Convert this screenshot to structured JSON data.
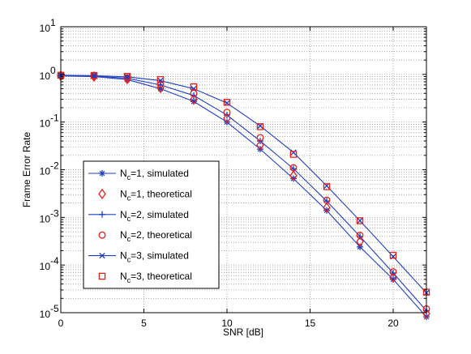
{
  "chart_data": {
    "type": "line",
    "xlabel": "SNR [dB]",
    "ylabel": "Frame Error Rate",
    "xlim": [
      0,
      22
    ],
    "ylim": [
      1e-05,
      10
    ],
    "yscale": "log",
    "grid": true,
    "legend_position": "lower-left",
    "x_ticks": [
      "0",
      "5",
      "10",
      "15",
      "20"
    ],
    "y_ticks": [
      {
        "base": "10",
        "exp": "1"
      },
      {
        "base": "10",
        "exp": "0"
      },
      {
        "base": "10",
        "exp": "-1"
      },
      {
        "base": "10",
        "exp": "-2"
      },
      {
        "base": "10",
        "exp": "-3"
      },
      {
        "base": "10",
        "exp": "-4"
      },
      {
        "base": "10",
        "exp": "-5"
      }
    ],
    "x": [
      0,
      2,
      4,
      6,
      8,
      10,
      12,
      14,
      16,
      18,
      20,
      22
    ],
    "series": [
      {
        "N": "1",
        "suffix": ", simulated",
        "marker": "asterisk",
        "line": true,
        "color": "#1f3fbf",
        "values": [
          0.93,
          0.9,
          0.78,
          0.5,
          0.27,
          0.1,
          0.027,
          0.0065,
          0.0014,
          0.00024,
          5e-05,
          8.2e-06
        ]
      },
      {
        "N": "1",
        "suffix": ", theoretical",
        "marker": "diamond",
        "line": false,
        "color": "#e8201c",
        "values": [
          0.93,
          0.9,
          0.8,
          0.52,
          0.3,
          0.12,
          0.033,
          0.0075,
          0.0016,
          0.00031,
          5.5e-05,
          9.5e-06
        ]
      },
      {
        "N": "2",
        "suffix": ", simulated",
        "marker": "plus",
        "line": true,
        "color": "#1f3fbf",
        "values": [
          0.95,
          0.92,
          0.83,
          0.6,
          0.36,
          0.14,
          0.04,
          0.0105,
          0.0022,
          0.0004,
          6.8e-05,
          1.1e-05
        ]
      },
      {
        "N": "2",
        "suffix": ", theoretical",
        "marker": "circle",
        "line": false,
        "color": "#e8201c",
        "values": [
          0.95,
          0.92,
          0.84,
          0.62,
          0.4,
          0.16,
          0.047,
          0.011,
          0.0023,
          0.00042,
          7.2e-05,
          1.2e-05
        ]
      },
      {
        "N": "3",
        "suffix": ", simulated",
        "marker": "x",
        "line": true,
        "color": "#1f3fbf",
        "values": [
          0.96,
          0.94,
          0.89,
          0.74,
          0.5,
          0.25,
          0.083,
          0.023,
          0.0046,
          0.00085,
          0.00015,
          2.6e-05
        ]
      },
      {
        "N": "3",
        "suffix": ", theoretical",
        "marker": "square",
        "line": false,
        "color": "#e8201c",
        "values": [
          0.96,
          0.95,
          0.91,
          0.78,
          0.55,
          0.26,
          0.08,
          0.021,
          0.0044,
          0.00085,
          0.00016,
          2.7e-05
        ]
      }
    ],
    "legend_entries": [
      {
        "main": "N",
        "sub": "c",
        "rest": "=1, simulated"
      },
      {
        "main": "N",
        "sub": "c",
        "rest": "=1, theoretical"
      },
      {
        "main": "N",
        "sub": "c",
        "rest": "=2, simulated"
      },
      {
        "main": "N",
        "sub": "c",
        "rest": "=2, theoretical"
      },
      {
        "main": "N",
        "sub": "c",
        "rest": "=3, simulated"
      },
      {
        "main": "N",
        "sub": "c",
        "rest": "=3, theoretical"
      }
    ]
  }
}
